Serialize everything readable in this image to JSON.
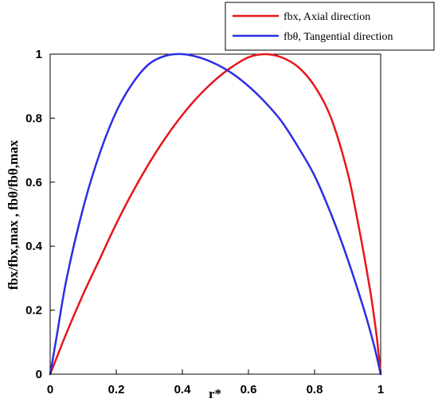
{
  "chart_data": {
    "type": "line",
    "xlabel": "r*",
    "ylabel": "fbx/fbx,max , fbθ/fbθ,max",
    "xlim": [
      0,
      1
    ],
    "ylim": [
      0,
      1
    ],
    "x_ticks": [
      "0",
      "0.2",
      "0.4",
      "0.6",
      "0.8",
      "1"
    ],
    "y_ticks": [
      "0",
      "0.2",
      "0.4",
      "0.6",
      "0.8",
      "1"
    ],
    "grid": false,
    "legend_position": "top-right",
    "series": [
      {
        "name": "fbx, Axial direction",
        "color": "#e8141b",
        "x": [
          0,
          0.05,
          0.1,
          0.15,
          0.2,
          0.25,
          0.3,
          0.35,
          0.4,
          0.45,
          0.5,
          0.55,
          0.6,
          0.65,
          0.7,
          0.75,
          0.8,
          0.85,
          0.9,
          0.93,
          0.95,
          0.97,
          0.98,
          0.99,
          1.0
        ],
        "y": [
          0,
          0.13,
          0.25,
          0.36,
          0.47,
          0.57,
          0.66,
          0.74,
          0.81,
          0.87,
          0.92,
          0.96,
          0.99,
          1.0,
          0.99,
          0.96,
          0.9,
          0.8,
          0.63,
          0.48,
          0.37,
          0.25,
          0.18,
          0.1,
          0.0
        ]
      },
      {
        "name": "fbθ, Tangential direction",
        "color": "#2d2de6",
        "x": [
          0,
          0.01,
          0.02,
          0.05,
          0.1,
          0.15,
          0.2,
          0.25,
          0.3,
          0.35,
          0.4,
          0.45,
          0.5,
          0.55,
          0.6,
          0.65,
          0.7,
          0.75,
          0.8,
          0.85,
          0.9,
          0.95,
          0.98,
          1.0
        ],
        "y": [
          0,
          0.06,
          0.12,
          0.3,
          0.52,
          0.69,
          0.82,
          0.91,
          0.97,
          0.995,
          1.0,
          0.99,
          0.97,
          0.94,
          0.9,
          0.85,
          0.79,
          0.71,
          0.62,
          0.5,
          0.36,
          0.2,
          0.09,
          0.0
        ]
      }
    ]
  }
}
